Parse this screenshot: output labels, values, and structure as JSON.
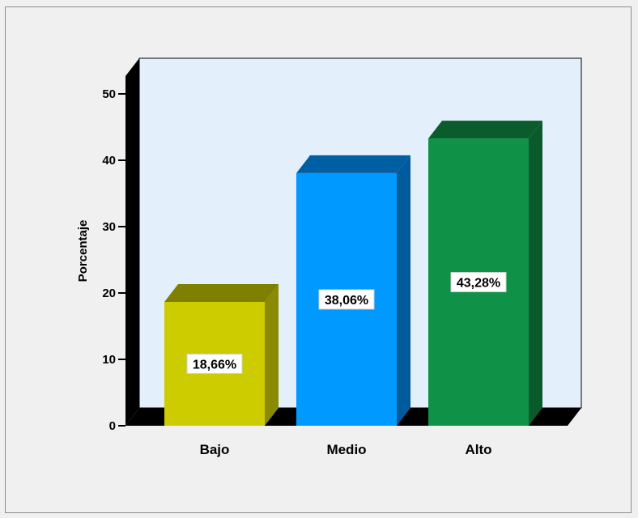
{
  "chart_data": {
    "type": "bar",
    "title": "",
    "xlabel": "",
    "ylabel": "Porcentaje",
    "categories": [
      "Bajo",
      "Medio",
      "Alto"
    ],
    "values": [
      18.66,
      38.06,
      43.28
    ],
    "data_labels": [
      "18,66%",
      "38,06%",
      "43,28%"
    ],
    "y_ticks": [
      0,
      10,
      20,
      30,
      40,
      50
    ],
    "ylim": [
      0,
      50
    ],
    "colors": {
      "front": [
        "#cccc00",
        "#0099ff",
        "#109148"
      ],
      "top": [
        "#7f7f00",
        "#005ea3",
        "#0b5c2d"
      ],
      "side": [
        "#8a8a05",
        "#005a9c",
        "#0a5a2c"
      ],
      "plot_background": "#e3effa",
      "walls": "#000000"
    },
    "grid": false,
    "legend": "none",
    "style": "3d"
  }
}
